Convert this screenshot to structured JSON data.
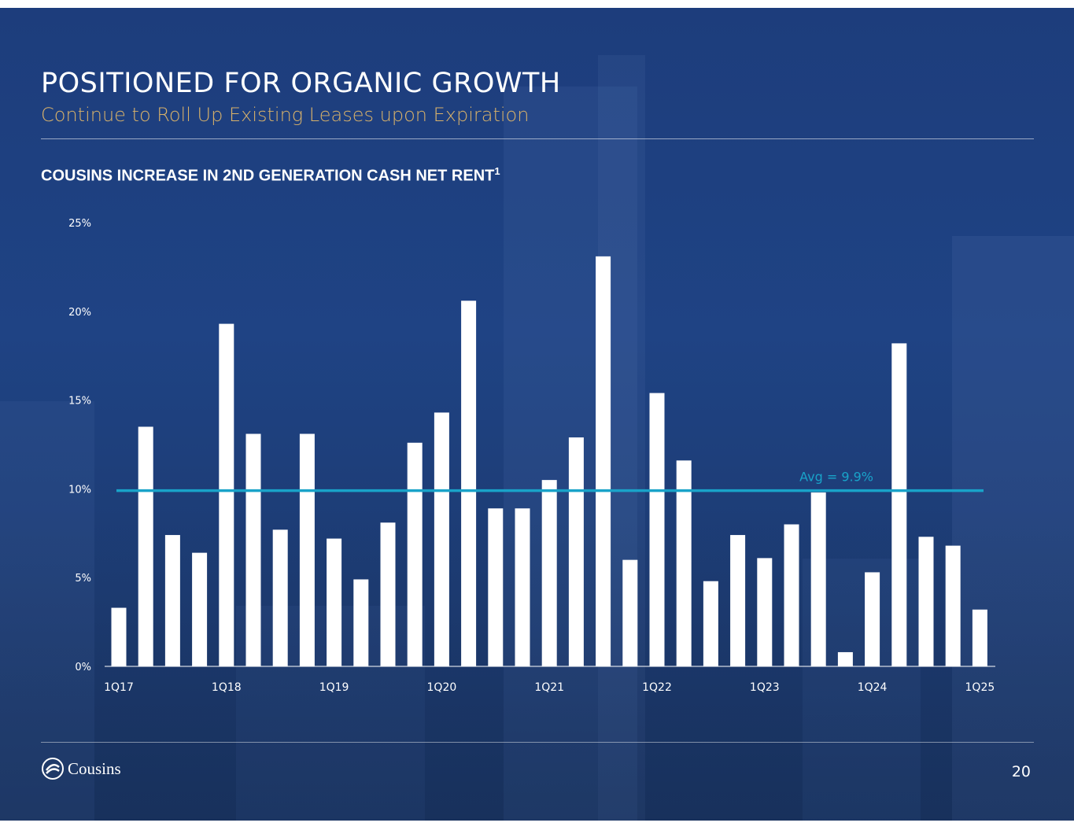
{
  "slide": {
    "title": "POSITIONED FOR ORGANIC GROWTH",
    "subtitle": "Continue to Roll Up Existing Leases upon Expiration",
    "chart_heading": "COUSINS INCREASE IN 2ND GENERATION CASH NET RENT",
    "chart_heading_footnote": "1",
    "logo_text": "Cousins",
    "page_number": "20",
    "avg_label": "Avg = 9.9%"
  },
  "colors": {
    "bar": "#ffffff",
    "avg_line": "#19a3c9",
    "title": "#ffffff",
    "subtitle": "#d9b26a"
  },
  "chart_data": {
    "type": "bar",
    "title": "COUSINS INCREASE IN 2ND GENERATION CASH NET RENT",
    "categories": [
      "1Q17",
      "2Q17",
      "3Q17",
      "4Q17",
      "1Q18",
      "2Q18",
      "3Q18",
      "4Q18",
      "1Q19",
      "2Q19",
      "3Q19",
      "4Q19",
      "1Q20",
      "2Q20",
      "3Q20",
      "4Q20",
      "1Q21",
      "2Q21",
      "3Q21",
      "4Q21",
      "1Q22",
      "2Q22",
      "3Q22",
      "4Q22",
      "1Q23",
      "2Q23",
      "3Q23",
      "4Q23",
      "1Q24",
      "2Q24",
      "3Q24",
      "4Q24",
      "1Q25"
    ],
    "x_tick_labels": [
      "1Q17",
      "1Q18",
      "1Q19",
      "1Q20",
      "1Q21",
      "1Q22",
      "1Q23",
      "1Q24",
      "1Q25"
    ],
    "values": [
      3.3,
      13.5,
      7.4,
      6.4,
      19.3,
      13.1,
      7.7,
      13.1,
      7.2,
      4.9,
      8.1,
      12.6,
      14.3,
      20.6,
      8.9,
      8.9,
      10.5,
      12.9,
      23.1,
      6.0,
      15.4,
      11.6,
      4.8,
      7.4,
      6.1,
      8.0,
      9.8,
      0.8,
      5.3,
      18.2,
      7.3,
      6.8,
      3.2
    ],
    "y_ticks": [
      "0%",
      "5%",
      "10%",
      "15%",
      "20%",
      "25%"
    ],
    "ylim": [
      0,
      25
    ],
    "average": 9.9,
    "average_label": "Avg = 9.9%",
    "grid": false,
    "legend": "none"
  }
}
